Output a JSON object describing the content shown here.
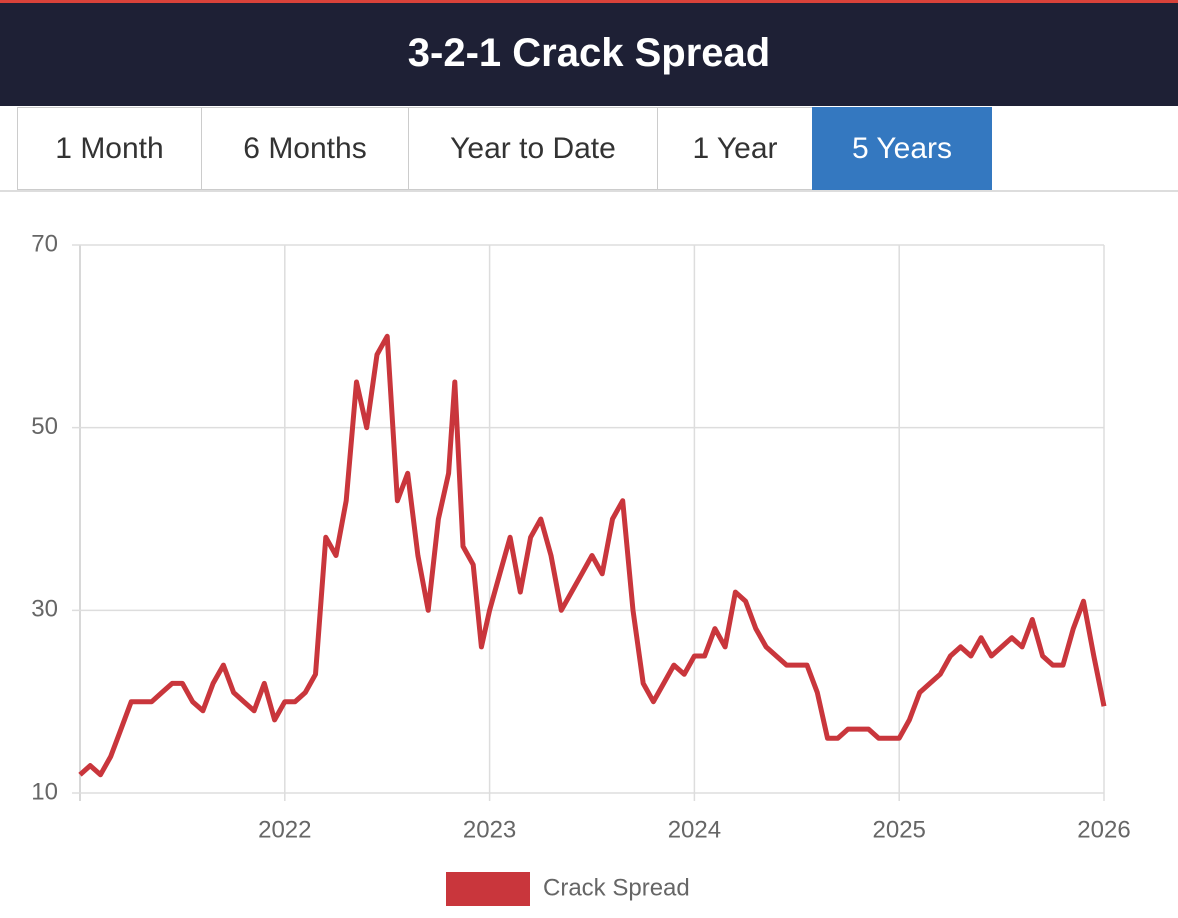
{
  "header": {
    "title": "3-2-1 Crack Spread"
  },
  "tabs": [
    "1 Month",
    "6 Months",
    "Year to Date",
    "1 Year",
    "5 Years"
  ],
  "active_tab": 4,
  "chart_data": {
    "type": "line",
    "x": [
      2021.0,
      2021.05,
      2021.1,
      2021.15,
      2021.2,
      2021.25,
      2021.3,
      2021.35,
      2021.4,
      2021.45,
      2021.5,
      2021.55,
      2021.6,
      2021.65,
      2021.7,
      2021.75,
      2021.8,
      2021.85,
      2021.9,
      2021.95,
      2022.0,
      2022.05,
      2022.1,
      2022.15,
      2022.2,
      2022.25,
      2022.3,
      2022.35,
      2022.4,
      2022.45,
      2022.5,
      2022.55,
      2022.6,
      2022.65,
      2022.7,
      2022.75,
      2022.8,
      2022.83,
      2022.87,
      2022.92,
      2022.96,
      2023.0,
      2023.05,
      2023.1,
      2023.15,
      2023.2,
      2023.25,
      2023.3,
      2023.35,
      2023.4,
      2023.45,
      2023.5,
      2023.55,
      2023.6,
      2023.65,
      2023.7,
      2023.75,
      2023.8,
      2023.85,
      2023.9,
      2023.95,
      2024.0,
      2024.05,
      2024.1,
      2024.15,
      2024.2,
      2024.25,
      2024.3,
      2024.35,
      2024.4,
      2024.45,
      2024.5,
      2024.55,
      2024.6,
      2024.65,
      2024.7,
      2024.75,
      2024.8,
      2024.85,
      2024.9,
      2024.95,
      2025.0,
      2025.05,
      2025.1,
      2025.15,
      2025.2,
      2025.25,
      2025.3,
      2025.35,
      2025.4,
      2025.45,
      2025.5,
      2025.55,
      2025.6,
      2025.65,
      2025.7,
      2025.75,
      2025.8,
      2025.85,
      2025.9,
      2025.95,
      2026.0
    ],
    "series": [
      {
        "name": "Crack Spread",
        "color": "#c9363c",
        "values": [
          12,
          13,
          12,
          14,
          17,
          20,
          20,
          20,
          21,
          22,
          22,
          20,
          19,
          22,
          24,
          21,
          20,
          19,
          22,
          18,
          20,
          20,
          21,
          23,
          38,
          36,
          42,
          55,
          50,
          58,
          60,
          42,
          45,
          36,
          30,
          40,
          45,
          55,
          37,
          35,
          26,
          30,
          34,
          38,
          32,
          38,
          40,
          36,
          30,
          32,
          34,
          36,
          34,
          40,
          42,
          30,
          22,
          20,
          22,
          24,
          23,
          25,
          25,
          28,
          26,
          32,
          31,
          28,
          26,
          25,
          24,
          24,
          24,
          21,
          16,
          16,
          17,
          17,
          17,
          16,
          16,
          16,
          18,
          21,
          22,
          23,
          25,
          26,
          25,
          27,
          25,
          26,
          27,
          26,
          29,
          25,
          24,
          24,
          28,
          31,
          25,
          19.5
        ]
      }
    ],
    "xlim": [
      2021,
      2026
    ],
    "xticks": [
      2022,
      2023,
      2024,
      2025,
      2026
    ],
    "ylim": [
      10,
      70
    ],
    "yticks": [
      10,
      30,
      50,
      70
    ],
    "grid": true
  }
}
